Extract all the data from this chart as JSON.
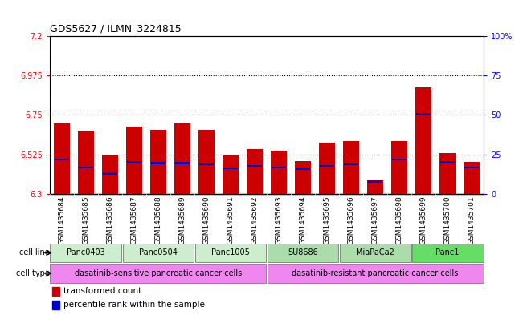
{
  "title": "GDS5627 / ILMN_3224815",
  "samples": [
    "GSM1435684",
    "GSM1435685",
    "GSM1435686",
    "GSM1435687",
    "GSM1435688",
    "GSM1435689",
    "GSM1435690",
    "GSM1435691",
    "GSM1435692",
    "GSM1435693",
    "GSM1435694",
    "GSM1435695",
    "GSM1435696",
    "GSM1435697",
    "GSM1435698",
    "GSM1435699",
    "GSM1435700",
    "GSM1435701"
  ],
  "red_values": [
    6.7,
    6.66,
    6.525,
    6.685,
    6.665,
    6.7,
    6.665,
    6.525,
    6.555,
    6.545,
    6.485,
    6.59,
    6.6,
    6.38,
    6.6,
    6.91,
    6.53,
    6.48
  ],
  "blue_values": [
    6.49,
    6.445,
    6.41,
    6.475,
    6.47,
    6.47,
    6.465,
    6.44,
    6.455,
    6.445,
    6.435,
    6.455,
    6.465,
    6.365,
    6.49,
    6.75,
    6.475,
    6.445
  ],
  "y_min": 6.3,
  "y_max": 7.2,
  "y_ticks_left": [
    6.3,
    6.525,
    6.75,
    6.975,
    7.2
  ],
  "y_ticks_right_values": [
    0,
    25,
    50,
    75,
    100
  ],
  "dotted_lines": [
    6.525,
    6.75,
    6.975
  ],
  "cell_lines": [
    {
      "label": "Panc0403",
      "start": 0,
      "end": 2
    },
    {
      "label": "Panc0504",
      "start": 3,
      "end": 5
    },
    {
      "label": "Panc1005",
      "start": 6,
      "end": 8
    },
    {
      "label": "SU8686",
      "start": 9,
      "end": 11
    },
    {
      "label": "MiaPaCa2",
      "start": 12,
      "end": 14
    },
    {
      "label": "Panc1",
      "start": 15,
      "end": 17
    }
  ],
  "cell_line_colors": {
    "Panc0403": "#cceecc",
    "Panc0504": "#cceecc",
    "Panc1005": "#cceecc",
    "SU8686": "#aaddaa",
    "MiaPaCa2": "#aaddaa",
    "Panc1": "#66dd66"
  },
  "cell_types": [
    {
      "label": "dasatinib-sensitive pancreatic cancer cells",
      "start": 0,
      "end": 8
    },
    {
      "label": "dasatinib-resistant pancreatic cancer cells",
      "start": 9,
      "end": 17
    }
  ],
  "cell_type_color": "#ee88ee",
  "bar_color": "#cc0000",
  "blue_color": "#0000cc",
  "tick_bg_color": "#d0d0d0"
}
